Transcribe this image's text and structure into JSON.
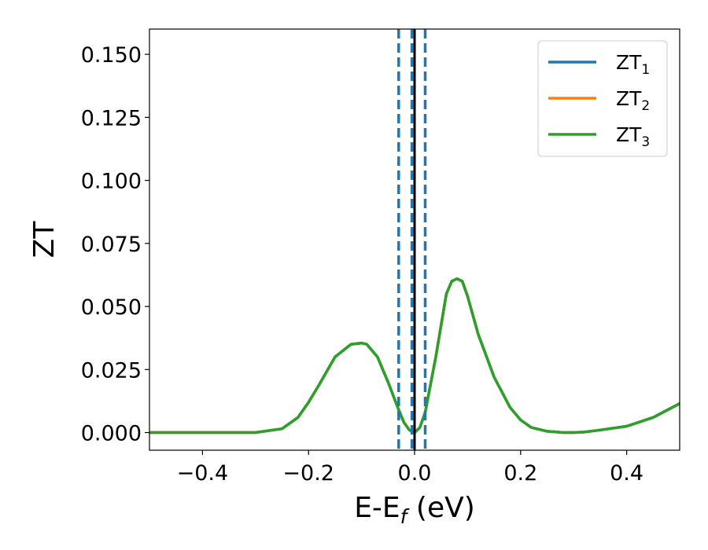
{
  "chart_data": {
    "type": "line",
    "xlabel": "E-E",
    "xlabel_sub": "f",
    "xlabel_unit": " (eV)",
    "ylabel": "ZT",
    "xlim": [
      -0.5,
      0.5
    ],
    "ylim": [
      -0.007,
      0.16
    ],
    "xticks": [
      -0.4,
      -0.2,
      0.0,
      0.2,
      0.4
    ],
    "xtick_labels": [
      "−0.4",
      "−0.2",
      "0.0",
      "0.2",
      "0.4"
    ],
    "yticks": [
      0.0,
      0.025,
      0.05,
      0.075,
      0.1,
      0.125,
      0.15
    ],
    "ytick_labels": [
      "0.000",
      "0.025",
      "0.050",
      "0.075",
      "0.100",
      "0.125",
      "0.150"
    ],
    "grid": false,
    "legend_position": "top-right",
    "colors": {
      "zt1": "#1f77b4",
      "zt2": "#ff7f0e",
      "zt3": "#2ca02c",
      "fermi_line": "#000000",
      "dashed_lines": "#1f77b4"
    },
    "x": [
      -0.5,
      -0.45,
      -0.4,
      -0.35,
      -0.3,
      -0.25,
      -0.22,
      -0.2,
      -0.18,
      -0.15,
      -0.12,
      -0.1,
      -0.09,
      -0.07,
      -0.05,
      -0.03,
      -0.02,
      -0.01,
      0.0,
      0.01,
      0.02,
      0.04,
      0.06,
      0.07,
      0.08,
      0.09,
      0.1,
      0.12,
      0.15,
      0.18,
      0.2,
      0.22,
      0.25,
      0.28,
      0.3,
      0.32,
      0.35,
      0.4,
      0.45,
      0.5
    ],
    "series": [
      {
        "name_main": "ZT",
        "name_sub": "1",
        "values": [
          0.0,
          0.0,
          0.0,
          0.0,
          0.0,
          0.0015,
          0.006,
          0.012,
          0.019,
          0.03,
          0.035,
          0.0355,
          0.035,
          0.03,
          0.02,
          0.009,
          0.004,
          0.001,
          0.0,
          0.002,
          0.008,
          0.03,
          0.055,
          0.06,
          0.061,
          0.06,
          0.054,
          0.039,
          0.022,
          0.01,
          0.005,
          0.002,
          0.0005,
          0.0,
          0.0,
          0.0002,
          0.001,
          0.0025,
          0.006,
          0.0115
        ]
      },
      {
        "name_main": "ZT",
        "name_sub": "2",
        "values": [
          0.0,
          0.0,
          0.0,
          0.0,
          0.0,
          0.0015,
          0.006,
          0.012,
          0.019,
          0.03,
          0.035,
          0.0355,
          0.035,
          0.03,
          0.02,
          0.009,
          0.004,
          0.001,
          0.0,
          0.002,
          0.008,
          0.03,
          0.055,
          0.06,
          0.061,
          0.06,
          0.054,
          0.039,
          0.022,
          0.01,
          0.005,
          0.002,
          0.0005,
          0.0,
          0.0,
          0.0002,
          0.001,
          0.0025,
          0.006,
          0.0115
        ]
      },
      {
        "name_main": "ZT",
        "name_sub": "3",
        "values": [
          0.0,
          0.0,
          0.0,
          0.0,
          0.0,
          0.0015,
          0.006,
          0.012,
          0.019,
          0.03,
          0.035,
          0.0355,
          0.035,
          0.03,
          0.02,
          0.009,
          0.004,
          0.001,
          0.0,
          0.002,
          0.008,
          0.03,
          0.055,
          0.06,
          0.061,
          0.06,
          0.054,
          0.039,
          0.022,
          0.01,
          0.005,
          0.002,
          0.0005,
          0.0,
          0.0,
          0.0002,
          0.001,
          0.0025,
          0.006,
          0.0115
        ]
      }
    ],
    "vertical_lines": [
      {
        "x": 0.0,
        "style": "solid",
        "color": "#000000"
      },
      {
        "x": -0.03,
        "style": "dashed",
        "color": "#1f77b4"
      },
      {
        "x": -0.005,
        "style": "dashed",
        "color": "#1f77b4"
      },
      {
        "x": 0.02,
        "style": "dashed",
        "color": "#1f77b4"
      }
    ]
  }
}
